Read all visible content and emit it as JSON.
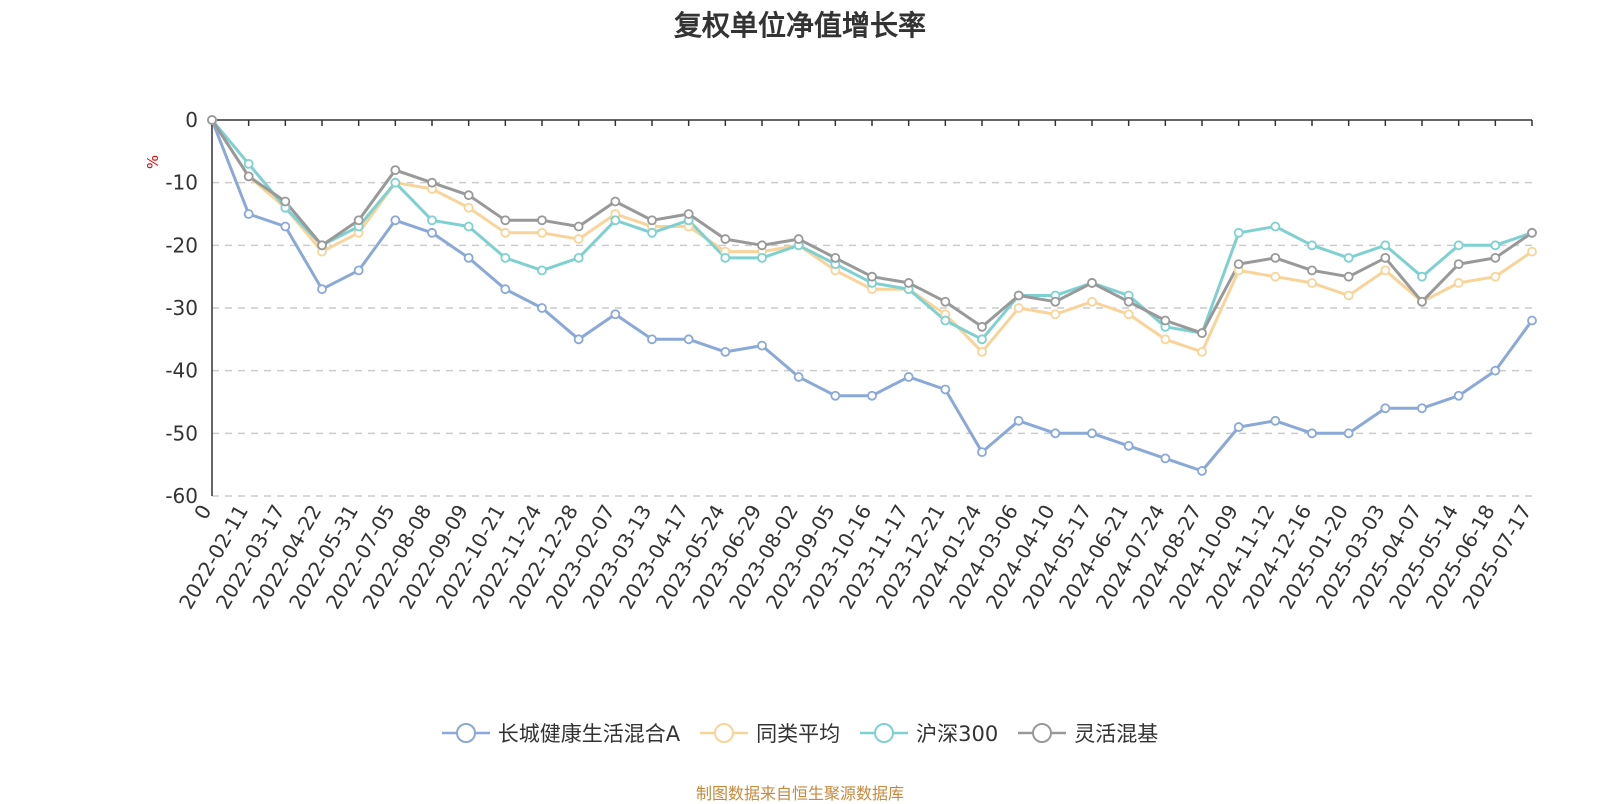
{
  "chart_data": {
    "type": "line",
    "title": "复权单位净值增长率",
    "xlabel": "",
    "ylabel": "%",
    "ylim": [
      -60,
      0
    ],
    "yticks": [
      0,
      -10,
      -20,
      -30,
      -40,
      -50,
      -60
    ],
    "categories": [
      "0",
      "2022-02-11",
      "2022-03-17",
      "2022-04-22",
      "2022-05-31",
      "2022-07-05",
      "2022-08-08",
      "2022-09-09",
      "2022-10-21",
      "2022-11-24",
      "2022-12-28",
      "2023-02-07",
      "2023-03-13",
      "2023-04-17",
      "2023-05-24",
      "2023-06-29",
      "2023-08-02",
      "2023-09-05",
      "2023-10-16",
      "2023-11-17",
      "2023-12-21",
      "2024-01-24",
      "2024-03-06",
      "2024-04-10",
      "2024-05-17",
      "2024-06-21",
      "2024-07-24",
      "2024-08-27",
      "2024-10-09",
      "2024-11-12",
      "2024-12-16",
      "2025-01-20",
      "2025-03-03",
      "2025-04-07",
      "2025-05-14",
      "2025-06-18",
      "2025-07-17"
    ],
    "grid": "horizontal-dashed",
    "legend_position": "bottom",
    "series": [
      {
        "name": "长城健康生活混合A",
        "color": "#8aa8d8",
        "values": [
          0,
          -15,
          -17,
          -27,
          -24,
          -16,
          -18,
          -22,
          -27,
          -30,
          -35,
          -31,
          -35,
          -35,
          -37,
          -36,
          -41,
          -44,
          -44,
          -41,
          -43,
          -53,
          -48,
          -50,
          -50,
          -52,
          -54,
          -56,
          -49,
          -48,
          -50,
          -50,
          -46,
          -46,
          -44,
          -40,
          -32
        ]
      },
      {
        "name": "同类平均",
        "color": "#f9d49a",
        "values": [
          0,
          -9,
          -14,
          -21,
          -18,
          -10,
          -11,
          -14,
          -18,
          -18,
          -19,
          -15,
          -17,
          -17,
          -21,
          -21,
          -20,
          -24,
          -27,
          -27,
          -31,
          -37,
          -30,
          -31,
          -29,
          -31,
          -35,
          -37,
          -24,
          -25,
          -26,
          -28,
          -24,
          -29,
          -26,
          -25,
          -21
        ]
      },
      {
        "name": "沪深300",
        "color": "#7fd0d0",
        "values": [
          0,
          -7,
          -14,
          -20,
          -17,
          -10,
          -16,
          -17,
          -22,
          -24,
          -22,
          -16,
          -18,
          -16,
          -22,
          -22,
          -20,
          -23,
          -26,
          -27,
          -32,
          -35,
          -28,
          -28,
          -26,
          -28,
          -33,
          -34,
          -18,
          -17,
          -20,
          -22,
          -20,
          -25,
          -20,
          -20,
          -18
        ]
      },
      {
        "name": "灵活混基",
        "color": "#999999",
        "values": [
          0,
          -9,
          -13,
          -20,
          -16,
          -8,
          -10,
          -12,
          -16,
          -16,
          -17,
          -13,
          -16,
          -15,
          -19,
          -20,
          -19,
          -22,
          -25,
          -26,
          -29,
          -33,
          -28,
          -29,
          -26,
          -29,
          -32,
          -34,
          -23,
          -22,
          -24,
          -25,
          -22,
          -29,
          -23,
          -22,
          -18
        ]
      }
    ]
  },
  "footer": {
    "source": "制图数据来自恒生聚源数据库"
  }
}
